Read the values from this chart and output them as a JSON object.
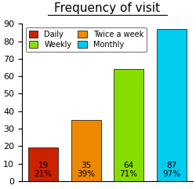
{
  "title": "Frequency of visit",
  "categories": [
    "Daily",
    "Twice a week",
    "Weekly",
    "Monthly"
  ],
  "values": [
    19,
    35,
    64,
    87
  ],
  "percentages": [
    "21%",
    "39%",
    "71%",
    "97%"
  ],
  "bar_colors": [
    "#cc2200",
    "#ee8800",
    "#88dd00",
    "#00ccee"
  ],
  "legend_labels": [
    "Daily",
    "Weekly",
    "Twice a week",
    "Monthly"
  ],
  "legend_colors": [
    "#cc2200",
    "#88dd00",
    "#ee8800",
    "#00ccee"
  ],
  "ylim": [
    0,
    90
  ],
  "yticks": [
    0,
    10,
    20,
    30,
    40,
    50,
    60,
    70,
    80,
    90
  ],
  "title_fontsize": 11,
  "bar_label_fontsize": 7.5,
  "background_color": "#ffffff"
}
